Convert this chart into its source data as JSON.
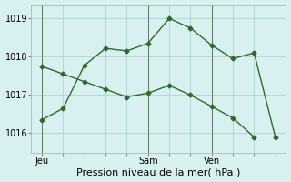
{
  "line1_x": [
    0,
    1,
    2,
    3,
    4,
    5,
    6,
    7,
    8,
    9,
    10,
    11
  ],
  "line1_y": [
    1016.35,
    1016.65,
    1017.77,
    1018.22,
    1018.15,
    1018.35,
    1019.0,
    1018.75,
    1018.3,
    1017.95,
    1018.1,
    1015.9
  ],
  "line2_x": [
    0,
    1,
    2,
    3,
    4,
    5,
    6,
    7,
    8,
    9,
    10
  ],
  "line2_y": [
    1017.75,
    1017.55,
    1017.35,
    1017.15,
    1016.95,
    1017.05,
    1017.25,
    1017.0,
    1016.7,
    1016.4,
    1015.9
  ],
  "line_color": "#2d6a2d",
  "bg_color": "#d8f0f0",
  "grid_color": "#b8d8d8",
  "xlabel": "Pression niveau de la mer( hPa )",
  "xtick_labels_map": {
    "0": "Jeu",
    "5": "Sam",
    "8": "Ven"
  },
  "xtick_positions": [
    0,
    1,
    2,
    3,
    4,
    5,
    6,
    7,
    8,
    9,
    10,
    11
  ],
  "ytick_positions": [
    1016,
    1017,
    1018,
    1019
  ],
  "ylim": [
    1015.5,
    1019.35
  ],
  "xlim": [
    -0.5,
    11.5
  ],
  "vline_positions": [
    0,
    5,
    8
  ],
  "xlabel_fontsize": 8,
  "tick_fontsize": 7,
  "marker": "D",
  "markersize": 2.5
}
